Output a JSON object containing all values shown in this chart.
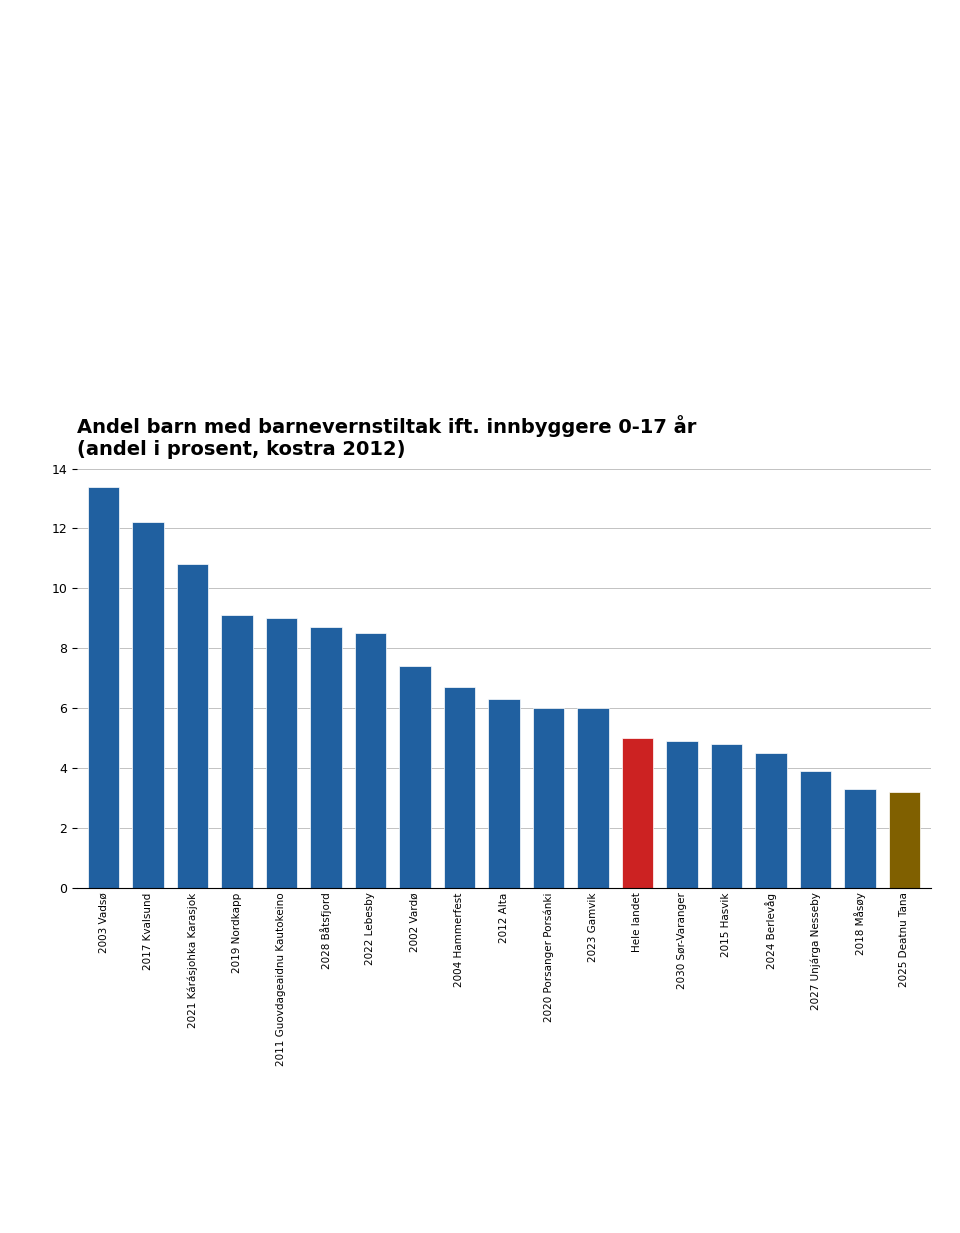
{
  "title_line1": "Andel barn med barnevernstiltak ift. innbyggere 0-17 år",
  "title_line2": "(andel i prosent, kostra 2012)",
  "categories": [
    "2003 Vadsø",
    "2017 Kvalsund",
    "2021 Kárásjohka Karasjok",
    "2019 Nordkapp",
    "2011 Guovdageaidnu Kautokeino",
    "2028 Båtsfjord",
    "2022 Lebesby",
    "2002 Vardø",
    "2004 Hammerfest",
    "2012 Alta",
    "2020 Porsanger Porsánki",
    "2023 Gamvik",
    "Hele landet",
    "2030 Sør-Varanger",
    "2015 Hasvik",
    "2024 Berlevåg",
    "2027 Unjárga Nesseby",
    "2018 Måsøy",
    "2025 Deatnu Tana"
  ],
  "values": [
    13.4,
    12.2,
    10.8,
    9.1,
    9.0,
    8.7,
    8.5,
    7.4,
    6.7,
    6.3,
    6.0,
    6.0,
    5.0,
    4.9,
    4.8,
    4.5,
    3.9,
    3.3,
    3.2
  ],
  "bar_colors": [
    "#2060A0",
    "#2060A0",
    "#2060A0",
    "#2060A0",
    "#2060A0",
    "#2060A0",
    "#2060A0",
    "#2060A0",
    "#2060A0",
    "#2060A0",
    "#2060A0",
    "#2060A0",
    "#CC2222",
    "#2060A0",
    "#2060A0",
    "#2060A0",
    "#2060A0",
    "#2060A0",
    "#806000"
  ],
  "ylim": [
    0,
    14
  ],
  "yticks": [
    0,
    2,
    4,
    6,
    8,
    10,
    12,
    14
  ],
  "background_color": "#ffffff",
  "grid_color": "#aaaaaa",
  "title_fontsize": 14,
  "tick_fontsize": 7.5
}
